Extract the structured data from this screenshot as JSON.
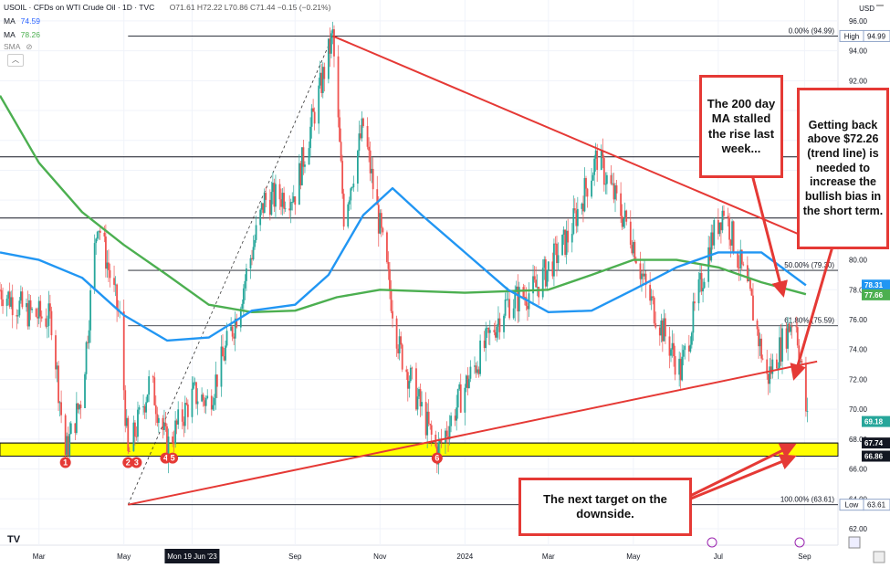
{
  "header": {
    "symbol": "USOIL · CFDs on WTI Crude Oil · 1D · TVC",
    "ohlc": "O71.61 H72.22 L70.86 C71.44 −0.15 (−0.21%)",
    "indicators": [
      {
        "label": "MA",
        "value": "74.59",
        "color": "#2962ff"
      },
      {
        "label": "MA",
        "value": "78.26",
        "color": "#4caf50"
      },
      {
        "label": "SMA",
        "value": ""
      }
    ]
  },
  "currency": "USD",
  "tv_logo": "TV",
  "colors": {
    "up": "#26a69a",
    "down": "#ef5350",
    "ma_fast": "#2196f3",
    "ma_slow": "#4caf50",
    "trend": "#e53935",
    "zone": "#ffff00"
  },
  "annotations": {
    "ma_note": "The 200 day MA stalled the rise last week...",
    "trend_note": "Getting back above $72.26 (trend line) is needed to increase the bullish bias in the short term.",
    "target_note": "The next target on the downside."
  },
  "chart_data": {
    "type": "candlestick",
    "x_labels": [
      {
        "label": "Mar",
        "date": "2023-03-01"
      },
      {
        "label": "May",
        "date": "2023-05-01"
      },
      {
        "label": "Mon 19 Jun '23",
        "date": "2023-06-19",
        "highlight": true
      },
      {
        "label": "Sep",
        "date": "2023-09-01"
      },
      {
        "label": "Nov",
        "date": "2023-11-01"
      },
      {
        "label": "2024",
        "date": "2024-01-01"
      },
      {
        "label": "Mar",
        "date": "2024-03-01"
      },
      {
        "label": "May",
        "date": "2024-05-01"
      },
      {
        "label": "Jul",
        "date": "2024-07-01"
      },
      {
        "label": "Sep",
        "date": "2024-09-01"
      }
    ],
    "y_ticks": [
      62,
      64,
      66,
      68,
      70,
      72,
      74,
      76,
      78,
      80,
      82,
      84,
      86,
      88,
      90,
      92,
      94,
      96
    ],
    "y_range": [
      60.9,
      97.4
    ],
    "price_tags": [
      {
        "text": "94.99",
        "value": 94.99,
        "style": "outline",
        "prefix": "High"
      },
      {
        "text": "78.31",
        "value": 78.31,
        "color": "#2196f3"
      },
      {
        "text": "77.66",
        "value": 77.66,
        "color": "#4caf50"
      },
      {
        "text": "69.18",
        "value": 69.18,
        "color": "#26a69a"
      },
      {
        "text": "67.74",
        "value": 67.74,
        "color": "#131722"
      },
      {
        "text": "66.86",
        "value": 66.86,
        "color": "#131722"
      },
      {
        "text": "63.61",
        "value": 63.61,
        "style": "outline",
        "prefix": "Low"
      }
    ],
    "fib_levels": [
      {
        "label": "0.00% (94.99)",
        "value": 94.99
      },
      {
        "label": "50.00% (79.30)",
        "value": 79.3
      },
      {
        "label": "61.80% (75.59)",
        "value": 75.59
      },
      {
        "label": "100.00% (63.61)",
        "value": 63.61
      }
    ],
    "horizontal_levels": [
      86.9,
      82.8,
      67.74,
      66.86
    ],
    "support_zone": [
      66.86,
      67.74
    ],
    "swing_lows": [
      {
        "label": "1",
        "date": "2023-03-20",
        "value": 66.8
      },
      {
        "label": "2",
        "date": "2023-05-04",
        "value": 66.8
      },
      {
        "label": "3",
        "date": "2023-05-10",
        "value": 66.8
      },
      {
        "label": "4",
        "date": "2023-05-31",
        "value": 67.1
      },
      {
        "label": "5",
        "date": "2023-06-05",
        "value": 67.1
      },
      {
        "label": "6",
        "date": "2023-12-12",
        "value": 67.1
      }
    ],
    "trend_lines": [
      {
        "from": {
          "date": "2023-09-28",
          "value": 94.99
        },
        "to": {
          "date": "2024-09-10",
          "value": 81.2
        }
      },
      {
        "from": {
          "date": "2023-05-04",
          "value": 63.61
        },
        "to": {
          "date": "2024-09-10",
          "value": 73.2
        }
      }
    ],
    "dashed_line": {
      "from": {
        "date": "2023-05-04",
        "value": 63.61
      },
      "to": {
        "date": "2023-09-28",
        "value": 94.99
      }
    },
    "ma_fast_path": [
      [
        "2023-02-01",
        80.5
      ],
      [
        "2023-03-01",
        80.0
      ],
      [
        "2023-04-01",
        78.8
      ],
      [
        "2023-05-01",
        76.3
      ],
      [
        "2023-06-01",
        74.6
      ],
      [
        "2023-07-01",
        74.8
      ],
      [
        "2023-08-01",
        76.6
      ],
      [
        "2023-09-01",
        77.0
      ],
      [
        "2023-09-25",
        79.0
      ],
      [
        "2023-10-20",
        83.0
      ],
      [
        "2023-11-10",
        84.8
      ],
      [
        "2023-12-01",
        83.0
      ],
      [
        "2024-01-01",
        80.5
      ],
      [
        "2024-02-01",
        78.0
      ],
      [
        "2024-03-01",
        76.5
      ],
      [
        "2024-04-01",
        76.6
      ],
      [
        "2024-05-01",
        78.0
      ],
      [
        "2024-06-01",
        79.5
      ],
      [
        "2024-07-01",
        80.5
      ],
      [
        "2024-08-01",
        80.5
      ],
      [
        "2024-09-02",
        78.3
      ]
    ],
    "ma_slow_path": [
      [
        "2023-02-01",
        91.0
      ],
      [
        "2023-03-01",
        86.5
      ],
      [
        "2023-04-01",
        83.2
      ],
      [
        "2023-05-01",
        81.0
      ],
      [
        "2023-06-01",
        79.0
      ],
      [
        "2023-07-01",
        77.0
      ],
      [
        "2023-08-01",
        76.5
      ],
      [
        "2023-09-01",
        76.6
      ],
      [
        "2023-10-01",
        77.5
      ],
      [
        "2023-11-01",
        78.0
      ],
      [
        "2024-01-01",
        77.8
      ],
      [
        "2024-03-01",
        78.0
      ],
      [
        "2024-04-01",
        79.0
      ],
      [
        "2024-05-01",
        80.0
      ],
      [
        "2024-06-01",
        80.0
      ],
      [
        "2024-07-01",
        79.5
      ],
      [
        "2024-08-01",
        78.5
      ],
      [
        "2024-09-02",
        77.7
      ]
    ],
    "price_path": [
      [
        "2023-02-01",
        78.0
      ],
      [
        "2023-02-20",
        76.5
      ],
      [
        "2023-03-10",
        76.0
      ],
      [
        "2023-03-20",
        67.0
      ],
      [
        "2023-04-01",
        71.0
      ],
      [
        "2023-04-12",
        82.8
      ],
      [
        "2023-04-28",
        76.0
      ],
      [
        "2023-05-04",
        66.8
      ],
      [
        "2023-05-20",
        72.0
      ],
      [
        "2023-06-01",
        67.5
      ],
      [
        "2023-06-20",
        71.0
      ],
      [
        "2023-07-01",
        70.5
      ],
      [
        "2023-07-20",
        76.0
      ],
      [
        "2023-08-10",
        84.0
      ],
      [
        "2023-09-01",
        84.5
      ],
      [
        "2023-09-28",
        94.99
      ],
      [
        "2023-10-06",
        83.0
      ],
      [
        "2023-10-20",
        89.0
      ],
      [
        "2023-11-15",
        74.0
      ],
      [
        "2023-12-12",
        67.1
      ],
      [
        "2024-01-01",
        71.5
      ],
      [
        "2024-01-30",
        77.0
      ],
      [
        "2024-02-20",
        78.0
      ],
      [
        "2024-03-15",
        81.5
      ],
      [
        "2024-04-05",
        86.9
      ],
      [
        "2024-04-30",
        81.5
      ],
      [
        "2024-05-10",
        78.0
      ],
      [
        "2024-06-04",
        72.5
      ],
      [
        "2024-06-25",
        81.0
      ],
      [
        "2024-07-05",
        83.5
      ],
      [
        "2024-07-25",
        77.0
      ],
      [
        "2024-08-05",
        72.0
      ],
      [
        "2024-08-25",
        76.5
      ],
      [
        "2024-09-03",
        69.18
      ]
    ]
  }
}
